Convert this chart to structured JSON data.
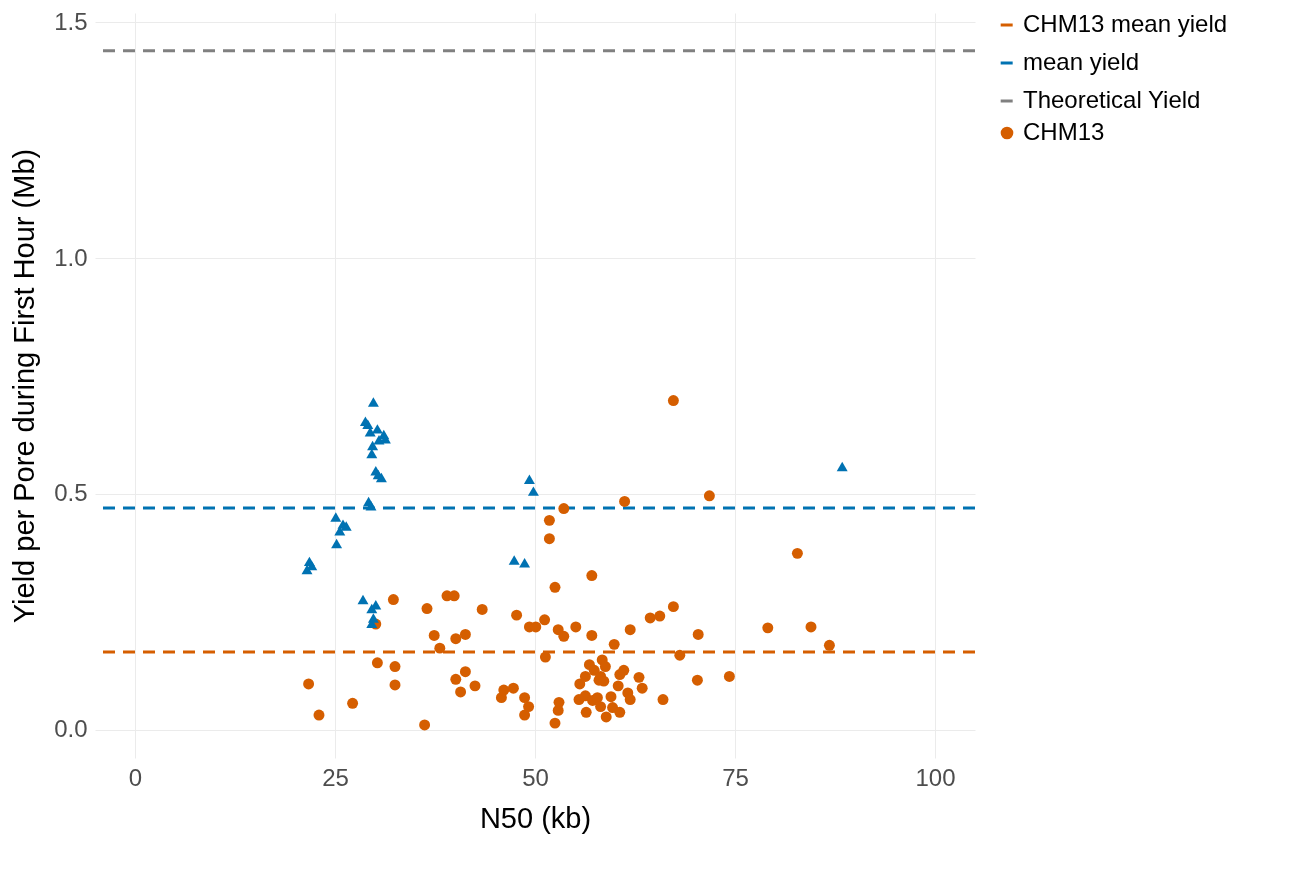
{
  "chart_data": {
    "type": "scatter",
    "xlabel": "N50 (kb)",
    "ylabel": "Yield per Pore during First Hour (Mb)",
    "xlim": [
      -5,
      105
    ],
    "xticks": [
      0,
      25,
      50,
      75,
      100
    ],
    "ylim": [
      -0.06,
      1.52
    ],
    "yticks": [
      {
        "value": 0,
        "label": "0.0"
      },
      {
        "value": 0.5,
        "label": "0.5"
      },
      {
        "value": 1,
        "label": "1.0"
      },
      {
        "value": 1.5,
        "label": "1.5"
      }
    ],
    "grid": true,
    "legend": "right",
    "series": [
      {
        "name": "CHM13",
        "color": "#d55e00",
        "marker": "circle",
        "x": [
          21.7,
          23.0,
          27.2,
          32.3,
          30.1,
          30.3,
          32.5,
          32.5,
          36.2,
          36.5,
          37.4,
          38.1,
          39.0,
          39.9,
          40.1,
          40.1,
          40.7,
          41.3,
          41.3,
          42.5,
          43.4,
          45.8,
          46.1,
          47.3,
          47.7,
          48.7,
          48.7,
          49.2,
          49.3,
          50.1,
          51.2,
          51.3,
          51.8,
          51.8,
          53.6,
          52.5,
          52.9,
          52.5,
          52.9,
          53.0,
          53.6,
          55.1,
          55.5,
          55.6,
          56.3,
          56.3,
          56.4,
          56.8,
          57.1,
          57.1,
          57.2,
          57.4,
          57.8,
          58.0,
          58.2,
          58.2,
          58.4,
          58.6,
          58.8,
          58.9,
          59.5,
          59.9,
          59.7,
          60.4,
          60.6,
          60.6,
          61.1,
          61.2,
          61.6,
          61.9,
          61.9,
          63.0,
          63.4,
          64.4,
          65.6,
          66.0,
          67.3,
          67.3,
          68.1,
          70.3,
          70.4,
          71.8,
          74.3,
          79.1,
          82.8,
          84.5,
          86.8
        ],
        "values": [
          0.097,
          0.031,
          0.056,
          0.276,
          0.224,
          0.142,
          0.134,
          0.095,
          0.01,
          0.257,
          0.2,
          0.173,
          0.284,
          0.284,
          0.193,
          0.107,
          0.08,
          0.202,
          0.123,
          0.093,
          0.255,
          0.068,
          0.084,
          0.088,
          0.243,
          0.068,
          0.031,
          0.049,
          0.218,
          0.218,
          0.233,
          0.154,
          0.444,
          0.405,
          0.469,
          0.302,
          0.212,
          0.014,
          0.041,
          0.058,
          0.198,
          0.218,
          0.064,
          0.097,
          0.113,
          0.072,
          0.037,
          0.138,
          0.2,
          0.327,
          0.062,
          0.126,
          0.068,
          0.105,
          0.113,
          0.049,
          0.148,
          0.103,
          0.134,
          0.027,
          0.07,
          0.181,
          0.047,
          0.093,
          0.117,
          0.037,
          0.126,
          0.484,
          0.078,
          0.212,
          0.064,
          0.111,
          0.088,
          0.237,
          0.241,
          0.064,
          0.698,
          0.261,
          0.158,
          0.105,
          0.202,
          0.496,
          0.113,
          0.216,
          0.374,
          0.218,
          0.179
        ]
      },
      {
        "color": "#0072b2",
        "marker": "triangle",
        "x": [
          21.5,
          21.8,
          22.1,
          25.2,
          25.1,
          25.6,
          26.0,
          26.4,
          28.5,
          29.6,
          30.1,
          29.8,
          29.6,
          29.1,
          28.8,
          29.4,
          29.8,
          30.3,
          30.5,
          31.1,
          29.7,
          29.6,
          30.1,
          30.8,
          30.4,
          29.2,
          29.5,
          31.3,
          47.4,
          48.7,
          49.3,
          49.8,
          88.4
        ],
        "values": [
          0.34,
          0.357,
          0.348,
          0.395,
          0.451,
          0.422,
          0.436,
          0.432,
          0.276,
          0.257,
          0.265,
          0.237,
          0.226,
          0.648,
          0.654,
          0.632,
          0.695,
          0.638,
          0.615,
          0.626,
          0.603,
          0.586,
          0.549,
          0.535,
          0.541,
          0.484,
          0.475,
          0.617,
          0.36,
          0.354,
          0.531,
          0.506,
          0.558
        ]
      }
    ],
    "ref_lines": [
      {
        "axis": "y",
        "value": 0.165,
        "label": "CHM13 mean yield",
        "color": "#d55e00",
        "line_style": "dashed"
      },
      {
        "axis": "y",
        "value": 0.47,
        "label": "mean yield",
        "color": "#0072b2",
        "line_style": "dashed"
      },
      {
        "axis": "y",
        "value": 1.44,
        "label": "Theoretical Yield",
        "color": "#808080",
        "line_style": "dashed"
      }
    ]
  }
}
